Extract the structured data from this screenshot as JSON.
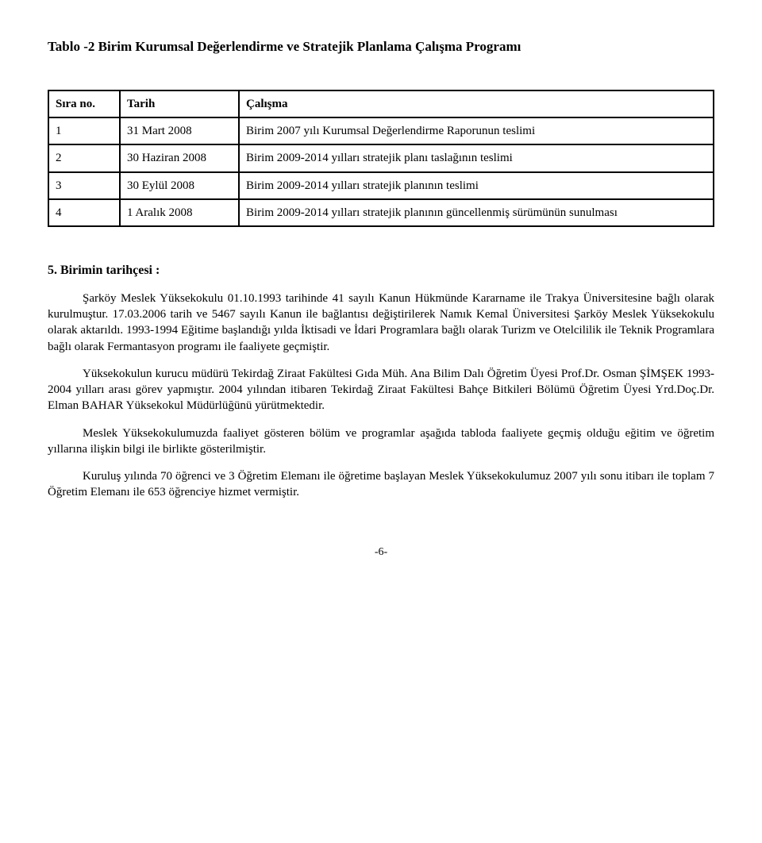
{
  "title": "Tablo -2 Birim Kurumsal Değerlendirme ve Stratejik Planlama Çalışma Programı",
  "table": {
    "headers": {
      "c0": "Sıra no.",
      "c1": "Tarih",
      "c2": "Çalışma"
    },
    "rows": [
      {
        "c0": "1",
        "c1": "31 Mart 2008",
        "c2": "Birim 2007 yılı Kurumsal Değerlendirme Raporunun teslimi"
      },
      {
        "c0": "2",
        "c1": "30 Haziran 2008",
        "c2": "Birim 2009-2014 yılları stratejik planı taslağının teslimi"
      },
      {
        "c0": "3",
        "c1": "30 Eylül 2008",
        "c2": "Birim 2009-2014 yılları stratejik planının teslimi"
      },
      {
        "c0": "4",
        "c1": "1 Aralık 2008",
        "c2": "Birim 2009-2014 yılları stratejik planının güncellenmiş sürümünün sunulması"
      }
    ]
  },
  "section_heading": "5. Birimin tarihçesi :",
  "p1": "Şarköy  Meslek Yüksekokulu 01.10.1993 tarihinde 41 sayılı Kanun Hükmünde Kararname ile Trakya Üniversitesine bağlı olarak kurulmuştur. 17.03.2006 tarih ve 5467 sayılı Kanun ile bağlantısı değiştirilerek Namık Kemal Üniversitesi Şarköy Meslek Yüksekokulu olarak aktarıldı. 1993-1994 Eğitime başlandığı  yılda İktisadi ve İdari Programlara bağlı olarak Turizm ve Otelcililik ile  Teknik Programlara bağlı olarak Fermantasyon programı ile faaliyete geçmiştir.",
  "p2": "Yüksekokulun kurucu müdürü   Tekirdağ   Ziraat Fakültesi Gıda Müh.  Ana Bilim Dalı Öğretim Üyesi Prof.Dr. Osman ŞİMŞEK 1993-2004 yılları arası görev yapmıştır. 2004 yılından itibaren Tekirdağ Ziraat Fakültesi Bahçe Bitkileri Bölümü Öğretim Üyesi Yrd.Doç.Dr. Elman BAHAR Yüksekokul Müdürlüğünü yürütmektedir.",
  "p3": "Meslek Yüksekokulumuzda faaliyet gösteren bölüm ve programlar aşağıda tabloda faaliyete geçmiş olduğu eğitim ve öğretim yıllarına ilişkin bilgi ile birlikte gösterilmiştir.",
  "p4": "Kuruluş yılında 70 öğrenci ve 3 Öğretim Elemanı ile öğretime başlayan Meslek Yüksekokulumuz 2007 yılı sonu itibarı ile toplam 7 Öğretim Elemanı ile  653 öğrenciye hizmet vermiştir.",
  "page_number": "-6-"
}
